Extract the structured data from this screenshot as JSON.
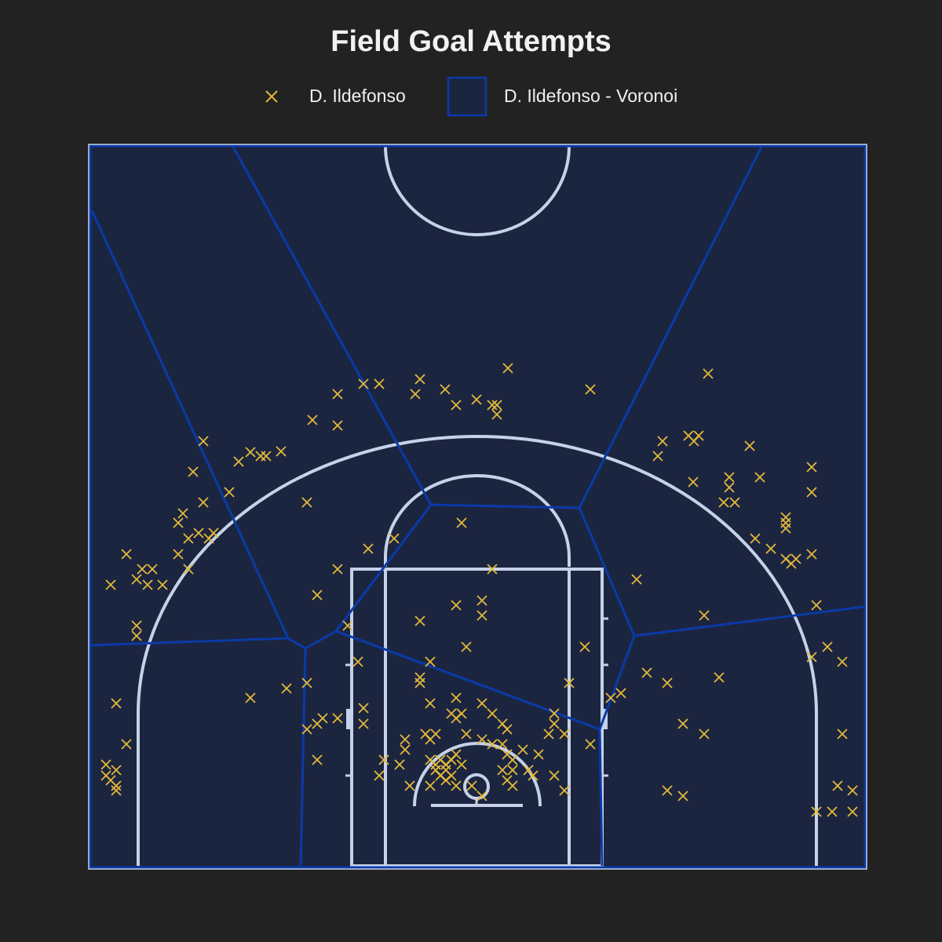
{
  "title": "Field Goal Attempts",
  "legend": {
    "shots_label": "D. Ildefonso",
    "voronoi_label": "D. Ildefonso - Voronoi"
  },
  "colors": {
    "background": "#222222",
    "court_fill": "#1c2540",
    "court_lines": "#c5d2ea",
    "voronoi_edges": "#0a3aa8",
    "shot_marker": "#e3b93a"
  },
  "chart_data": {
    "type": "scatter",
    "title": "Field Goal Attempts",
    "series": [
      {
        "name": "D. Ildefonso",
        "marker": "x",
        "color": "#e3b93a",
        "points": [
          [
            647,
            469
          ],
          [
            902,
            476
          ],
          [
            463,
            489
          ],
          [
            483,
            489
          ],
          [
            535,
            483
          ],
          [
            430,
            502
          ],
          [
            529,
            502
          ],
          [
            567,
            496
          ],
          [
            752,
            496
          ],
          [
            581,
            516
          ],
          [
            607,
            509
          ],
          [
            627,
            516
          ],
          [
            633,
            516
          ],
          [
            633,
            528
          ],
          [
            398,
            535
          ],
          [
            430,
            542
          ],
          [
            259,
            562
          ],
          [
            877,
            555
          ],
          [
            884,
            562
          ],
          [
            890,
            555
          ],
          [
            844,
            562
          ],
          [
            838,
            581
          ],
          [
            955,
            568
          ],
          [
            304,
            588
          ],
          [
            319,
            576
          ],
          [
            332,
            581
          ],
          [
            339,
            581
          ],
          [
            358,
            575
          ],
          [
            246,
            601
          ],
          [
            292,
            627
          ],
          [
            883,
            614
          ],
          [
            929,
            608
          ],
          [
            929,
            621
          ],
          [
            922,
            640
          ],
          [
            936,
            640
          ],
          [
            968,
            608
          ],
          [
            1034,
            595
          ],
          [
            1034,
            627
          ],
          [
            391,
            640
          ],
          [
            259,
            640
          ],
          [
            233,
            654
          ],
          [
            227,
            666
          ],
          [
            253,
            679
          ],
          [
            240,
            686
          ],
          [
            266,
            686
          ],
          [
            272,
            679
          ],
          [
            1001,
            659
          ],
          [
            1001,
            666
          ],
          [
            1001,
            673
          ],
          [
            962,
            686
          ],
          [
            982,
            699
          ],
          [
            1001,
            712
          ],
          [
            1008,
            718
          ],
          [
            1014,
            712
          ],
          [
            1034,
            706
          ],
          [
            588,
            666
          ],
          [
            502,
            686
          ],
          [
            469,
            699
          ],
          [
            161,
            706
          ],
          [
            227,
            706
          ],
          [
            240,
            725
          ],
          [
            181,
            725
          ],
          [
            194,
            725
          ],
          [
            174,
            738
          ],
          [
            188,
            745
          ],
          [
            207,
            745
          ],
          [
            141,
            745
          ],
          [
            174,
            797
          ],
          [
            174,
            810
          ],
          [
            430,
            725
          ],
          [
            627,
            725
          ],
          [
            811,
            738
          ],
          [
            404,
            758
          ],
          [
            581,
            771
          ],
          [
            614,
            765
          ],
          [
            614,
            784
          ],
          [
            535,
            791
          ],
          [
            897,
            784
          ],
          [
            1040,
            771
          ],
          [
            443,
            797
          ],
          [
            594,
            824
          ],
          [
            745,
            824
          ],
          [
            1054,
            824
          ],
          [
            1034,
            837
          ],
          [
            1073,
            843
          ],
          [
            456,
            843
          ],
          [
            548,
            843
          ],
          [
            824,
            857
          ],
          [
            850,
            870
          ],
          [
            916,
            863
          ],
          [
            535,
            863
          ],
          [
            535,
            870
          ],
          [
            725,
            870
          ],
          [
            391,
            870
          ],
          [
            365,
            877
          ],
          [
            319,
            889
          ],
          [
            148,
            896
          ],
          [
            778,
            889
          ],
          [
            791,
            883
          ],
          [
            463,
            902
          ],
          [
            463,
            922
          ],
          [
            430,
            915
          ],
          [
            411,
            915
          ],
          [
            404,
            922
          ],
          [
            391,
            929
          ],
          [
            548,
            896
          ],
          [
            581,
            889
          ],
          [
            614,
            896
          ],
          [
            575,
            909
          ],
          [
            581,
            915
          ],
          [
            588,
            909
          ],
          [
            627,
            909
          ],
          [
            640,
            922
          ],
          [
            646,
            929
          ],
          [
            706,
            909
          ],
          [
            706,
            922
          ],
          [
            699,
            935
          ],
          [
            719,
            935
          ],
          [
            870,
            922
          ],
          [
            897,
            935
          ],
          [
            1073,
            935
          ],
          [
            161,
            948
          ],
          [
            752,
            948
          ],
          [
            516,
            942
          ],
          [
            516,
            955
          ],
          [
            542,
            935
          ],
          [
            548,
            942
          ],
          [
            555,
            935
          ],
          [
            594,
            935
          ],
          [
            614,
            942
          ],
          [
            627,
            948
          ],
          [
            640,
            948
          ],
          [
            404,
            968
          ],
          [
            489,
            968
          ],
          [
            509,
            974
          ],
          [
            483,
            988
          ],
          [
            548,
            968
          ],
          [
            555,
            974
          ],
          [
            561,
            968
          ],
          [
            568,
            974
          ],
          [
            575,
            968
          ],
          [
            581,
            961
          ],
          [
            588,
            974
          ],
          [
            555,
            981
          ],
          [
            561,
            988
          ],
          [
            568,
            981
          ],
          [
            575,
            988
          ],
          [
            568,
            994
          ],
          [
            548,
            1001
          ],
          [
            522,
            1001
          ],
          [
            581,
            1001
          ],
          [
            646,
            961
          ],
          [
            653,
            968
          ],
          [
            666,
            955
          ],
          [
            686,
            961
          ],
          [
            640,
            981
          ],
          [
            653,
            981
          ],
          [
            673,
            981
          ],
          [
            679,
            988
          ],
          [
            646,
            994
          ],
          [
            653,
            1001
          ],
          [
            706,
            988
          ],
          [
            719,
            1007
          ],
          [
            601,
            1001
          ],
          [
            614,
            1014
          ],
          [
            135,
            974
          ],
          [
            148,
            981
          ],
          [
            135,
            988
          ],
          [
            141,
            994
          ],
          [
            148,
            1001
          ],
          [
            148,
            1007
          ],
          [
            850,
            1007
          ],
          [
            870,
            1014
          ],
          [
            1067,
            1001
          ],
          [
            1086,
            1007
          ],
          [
            1040,
            1034
          ],
          [
            1060,
            1034
          ],
          [
            1086,
            1034
          ]
        ]
      },
      {
        "name": "D. Ildefonso - Voronoi",
        "type": "voronoi",
        "edges": [
          [
            [
              117,
              268
            ],
            [
              367,
              813
            ]
          ],
          [
            [
              297,
              187
            ],
            [
              549,
              643
            ]
          ],
          [
            [
              970,
              187
            ],
            [
              738,
              647
            ]
          ],
          [
            [
              549,
              643
            ],
            [
              738,
              647
            ]
          ],
          [
            [
              549,
              643
            ],
            [
              428,
              804
            ]
          ],
          [
            [
              738,
              647
            ],
            [
              808,
              810
            ]
          ],
          [
            [
              428,
              804
            ],
            [
              389,
              826
            ]
          ],
          [
            [
              367,
              813
            ],
            [
              389,
              826
            ]
          ],
          [
            [
              117,
              822
            ],
            [
              367,
              813
            ]
          ],
          [
            [
              389,
              826
            ],
            [
              383,
              1103
            ]
          ],
          [
            [
              428,
              804
            ],
            [
              764,
              929
            ]
          ],
          [
            [
              808,
              810
            ],
            [
              764,
              929
            ]
          ],
          [
            [
              808,
              810
            ],
            [
              1100,
              773
            ]
          ],
          [
            [
              764,
              929
            ],
            [
              767,
              1103
            ]
          ]
        ]
      }
    ]
  }
}
